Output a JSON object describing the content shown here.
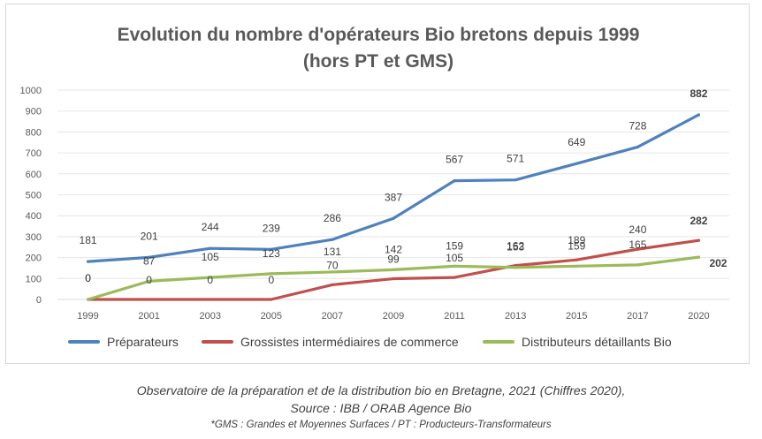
{
  "chart_data": {
    "type": "line",
    "title": "Evolution du nombre d'opérateurs Bio bretons depuis 1999",
    "subtitle": "(hors PT et GMS)",
    "xlabel": "",
    "ylabel": "",
    "categories": [
      "1999",
      "2001",
      "2003",
      "2005",
      "2007",
      "2009",
      "2011",
      "2013",
      "2015",
      "2017",
      "2020"
    ],
    "ylim": [
      0,
      1000
    ],
    "yticks": [
      "0",
      "100",
      "200",
      "300",
      "400",
      "500",
      "600",
      "700",
      "800",
      "900",
      "1000"
    ],
    "grid": true,
    "legend_position": "bottom",
    "series": [
      {
        "name": "Préparateurs",
        "color": "#4f81bd",
        "values": [
          181,
          201,
          244,
          239,
          286,
          387,
          567,
          571,
          649,
          728,
          882
        ],
        "labels": [
          "181",
          "201",
          "244",
          "239",
          "286",
          "387",
          "567",
          "571",
          "649",
          "728",
          "882"
        ]
      },
      {
        "name": "Grossistes intermédiaires de commerce",
        "color": "#c0504d",
        "values": [
          0,
          0,
          0,
          0,
          70,
          99,
          105,
          162,
          189,
          240,
          282
        ],
        "labels": [
          "0",
          "0",
          "0",
          "0",
          "70",
          "99",
          "105",
          "162",
          "189",
          "240",
          "282"
        ]
      },
      {
        "name": "Distributeurs détaillants Bio",
        "color": "#9bbb59",
        "values": [
          0,
          87,
          105,
          123,
          131,
          142,
          159,
          153,
          159,
          165,
          202
        ],
        "labels": [
          "0",
          "87",
          "105",
          "123",
          "131",
          "142",
          "159",
          "153",
          "159",
          "165",
          "202"
        ]
      }
    ]
  },
  "caption": {
    "line1": "Observatoire de la préparation et de la distribution bio en Bretagne, 2021 (Chiffres 2020),",
    "line2": "Source : IBB / ORAB Agence Bio",
    "line3": "*GMS : Grandes et Moyennes Surfaces / PT : Producteurs-Transformateurs"
  }
}
